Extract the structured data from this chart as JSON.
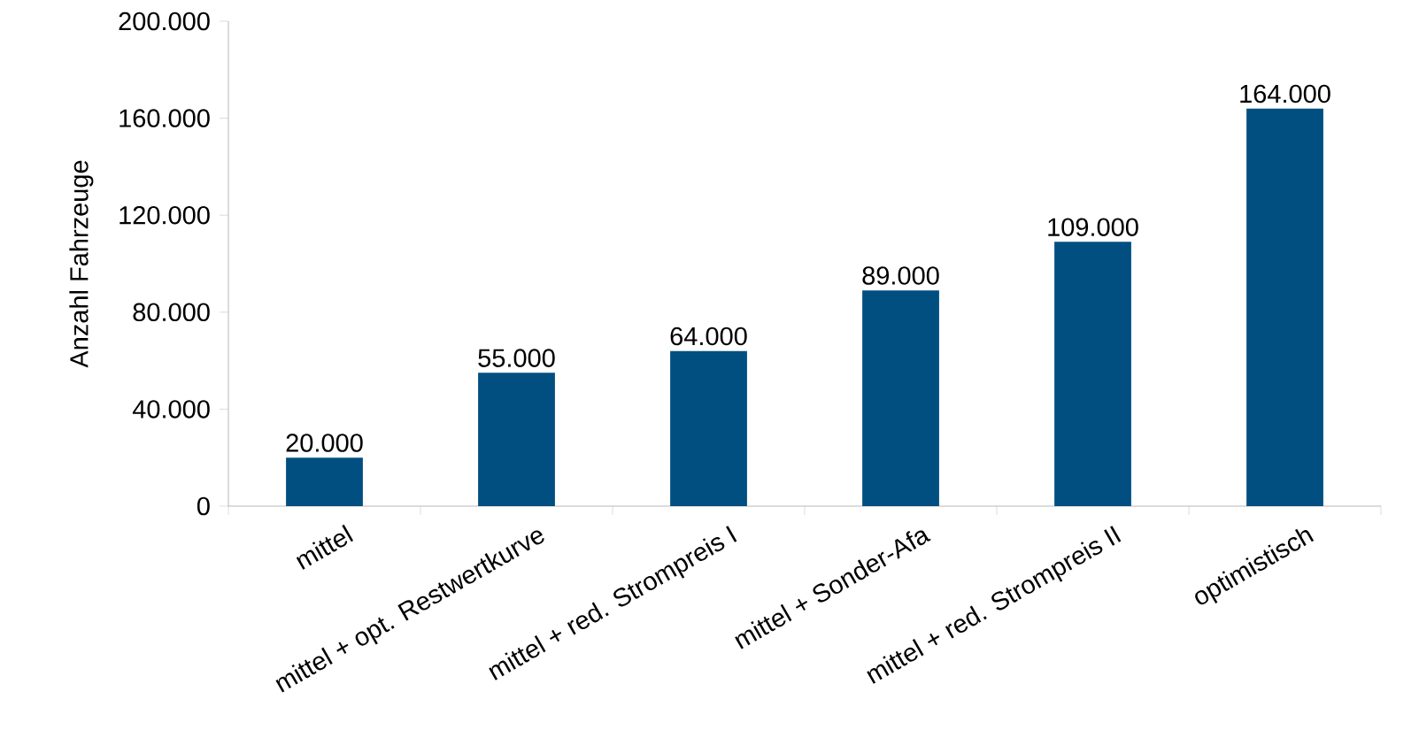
{
  "chart_data": {
    "type": "bar",
    "ylabel": "Anzahl Fahrzeuge",
    "categories": [
      "mittel",
      "mittel + opt. Restwertkurve",
      "mittel + red. Strompreis I",
      "mittel + Sonder-Afa",
      "mittel + red. Strompreis II",
      "optimistisch"
    ],
    "values": [
      20000,
      55000,
      64000,
      89000,
      109000,
      164000
    ],
    "value_labels": [
      "20.000",
      "55.000",
      "64.000",
      "89.000",
      "109.000",
      "164.000"
    ],
    "color": "#004f80",
    "ylim": [
      0,
      200000
    ],
    "yticks": [
      0,
      {
        "value": 40000,
        "label": "40.000"
      },
      {
        "value": 80000,
        "label": "80.000"
      },
      {
        "value": 120000,
        "label": "120.000"
      },
      {
        "value": 160000,
        "label": "160.000"
      },
      {
        "value": 200000,
        "label": "200.000"
      }
    ],
    "grid": false
  }
}
